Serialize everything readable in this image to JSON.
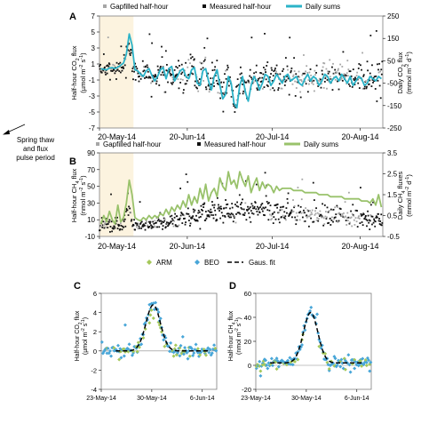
{
  "side_note": [
    "Spring thaw",
    "and flux",
    "pulse period"
  ],
  "colors": {
    "gapfilled": "#a6a6a6",
    "measured": "#111111",
    "co2_daily": "#2bb3c8",
    "ch4_daily": "#99c26b",
    "arm": "#a5c85a",
    "beo": "#48a6d8",
    "fit": "#000000",
    "highlight": "#fcf3df"
  },
  "chart_data": [
    {
      "panel": "A",
      "type": "scatter",
      "legend": [
        "Gapfilled half-hour",
        "Measured half-hour",
        "Daily sums"
      ],
      "ylabel": [
        "Half-hour CO",
        "2",
        " flux"
      ],
      "yunit": [
        "(µmol m",
        "-2",
        " s",
        "-1",
        ")"
      ],
      "y2label": [
        "Daily CO",
        "2",
        " flux"
      ],
      "y2unit": [
        "(mmol m",
        "-2",
        " d",
        "-1",
        ")"
      ],
      "ylim": [
        -7,
        7
      ],
      "yticks": [
        -7,
        -5,
        -3,
        -1,
        1,
        3,
        5,
        7
      ],
      "y2lim": [
        -250,
        250
      ],
      "y2ticks": [
        -250,
        -150,
        -50,
        50,
        150,
        250
      ],
      "xticks": [
        "20-May-14",
        "20-Jun-14",
        "20-Jul-14",
        "20-Aug-14"
      ],
      "xlim_days": [
        140,
        240
      ],
      "xtick_days": [
        140,
        171,
        201,
        232
      ],
      "highlight_days": [
        140,
        152
      ],
      "daily_sums": {
        "day": [
          140,
          141,
          142,
          143,
          144,
          145,
          146,
          147,
          148,
          149,
          150,
          151,
          152,
          153,
          154,
          155,
          156,
          157,
          158,
          159,
          160,
          161,
          162,
          163,
          164,
          165,
          166,
          167,
          168,
          169,
          170,
          171,
          172,
          173,
          174,
          175,
          176,
          177,
          178,
          179,
          180,
          181,
          182,
          183,
          184,
          185,
          186,
          187,
          188,
          189,
          190,
          191,
          192,
          193,
          194,
          195,
          196,
          197,
          198,
          199,
          200,
          201,
          202,
          203,
          204,
          205,
          206,
          207,
          208,
          209,
          210,
          211,
          212,
          213,
          214,
          215,
          216,
          217,
          218,
          219,
          220,
          221,
          222,
          223,
          224,
          225,
          226,
          227,
          228,
          229,
          230,
          231,
          232,
          233,
          234,
          235,
          236,
          237,
          238,
          239
        ],
        "value": [
          15,
          12,
          10,
          18,
          20,
          15,
          22,
          30,
          40,
          80,
          170,
          120,
          10,
          5,
          -10,
          -20,
          5,
          15,
          -15,
          -40,
          -20,
          10,
          20,
          -30,
          15,
          25,
          -40,
          -20,
          5,
          15,
          -20,
          -30,
          10,
          20,
          -50,
          -60,
          5,
          15,
          -40,
          -80,
          -20,
          10,
          -60,
          -120,
          -100,
          -20,
          -50,
          -140,
          -160,
          -60,
          -20,
          -90,
          -130,
          -60,
          -20,
          -40,
          -80,
          -50,
          -10,
          -20,
          -60,
          -40,
          -10,
          -30,
          -50,
          -20,
          -10,
          -40,
          -30,
          -20,
          -50,
          -60,
          -30,
          -10,
          -40,
          -20,
          -30,
          -60,
          -40,
          -10,
          -20,
          -50,
          -30,
          -20,
          -40,
          -10,
          -30,
          -50,
          -20,
          -60,
          -40,
          -20,
          -30,
          -60,
          -50,
          -20,
          -30,
          -40,
          -20,
          -30
        ]
      }
    },
    {
      "panel": "B",
      "type": "scatter",
      "legend": [
        "Gapfilled half-hour",
        "Measured half-hour",
        "Daily sums"
      ],
      "ylabel": [
        "Half-hour CH",
        "4",
        " flux"
      ],
      "yunit": [
        "(nmol m",
        "-2",
        " s",
        "-1",
        ")"
      ],
      "y2label": [
        "Daily CH",
        "4",
        " fluxes"
      ],
      "y2unit": [
        "(mmol m",
        "-2",
        " d",
        "-1",
        ")"
      ],
      "ylim": [
        -10,
        90
      ],
      "yticks": [
        -10,
        10,
        30,
        50,
        70,
        90
      ],
      "y2lim": [
        -0.5,
        3.5
      ],
      "y2ticks": [
        -0.5,
        0.5,
        1.5,
        2.5,
        3.5
      ],
      "xticks": [
        "20-May-14",
        "20-Jun-14",
        "20-Jul-14",
        "20-Aug-14"
      ],
      "xlim_days": [
        140,
        240
      ],
      "xtick_days": [
        140,
        171,
        201,
        232
      ],
      "highlight_days": [
        140,
        152
      ],
      "daily_sums": {
        "day": [
          140,
          141,
          142,
          143,
          144,
          145,
          146,
          147,
          148,
          149,
          150,
          151,
          152,
          153,
          154,
          155,
          156,
          157,
          158,
          159,
          160,
          161,
          162,
          163,
          164,
          165,
          166,
          167,
          168,
          169,
          170,
          171,
          172,
          173,
          174,
          175,
          176,
          177,
          178,
          179,
          180,
          181,
          182,
          183,
          184,
          185,
          186,
          187,
          188,
          189,
          190,
          191,
          192,
          193,
          194,
          195,
          196,
          197,
          198,
          199,
          200,
          201,
          202,
          203,
          204,
          205,
          206,
          207,
          208,
          209,
          210,
          211,
          212,
          213,
          214,
          215,
          216,
          217,
          218,
          219,
          220,
          221,
          222,
          223,
          224,
          225,
          226,
          227,
          228,
          229,
          230,
          231,
          232,
          233,
          234,
          235,
          236,
          237,
          238,
          239
        ],
        "value": [
          0.1,
          0.5,
          0.2,
          0.7,
          0.3,
          0.1,
          1.0,
          0.2,
          0.4,
          1.1,
          2.2,
          1.5,
          0.4,
          0.3,
          0.25,
          0.4,
          0.3,
          0.5,
          0.35,
          0.5,
          0.4,
          0.6,
          0.5,
          0.8,
          0.55,
          0.9,
          0.7,
          1.0,
          0.8,
          1.2,
          0.9,
          1.5,
          1.0,
          1.4,
          1.1,
          1.8,
          1.3,
          2.0,
          1.2,
          1.6,
          1.8,
          1.4,
          2.3,
          1.9,
          1.7,
          2.6,
          2.0,
          2.2,
          1.8,
          2.6,
          2.2,
          1.9,
          2.4,
          1.6,
          2.0,
          2.3,
          1.7,
          2.1,
          1.8,
          2.0,
          1.9,
          1.6,
          1.9,
          1.7,
          1.8,
          1.8,
          1.8,
          1.8,
          1.7,
          1.7,
          1.7,
          1.7,
          1.6,
          1.6,
          1.6,
          1.6,
          1.6,
          1.5,
          1.5,
          1.5,
          1.5,
          1.4,
          1.4,
          1.4,
          1.4,
          1.4,
          1.3,
          1.3,
          1.3,
          1.3,
          1.3,
          1.3,
          1.2,
          1.2,
          1.2,
          1.1,
          1.3,
          1.0,
          1.5,
          0.9
        ]
      }
    },
    {
      "panel": "C",
      "type": "scatter",
      "legend": [
        "ARM",
        "BEO",
        "Gaus. fit"
      ],
      "ylabel": [
        "Half-hour CO",
        "2",
        " flux"
      ],
      "yunit": [
        "(µmol m",
        "-2",
        " s",
        "-1",
        ")"
      ],
      "ylim": [
        -4,
        6
      ],
      "yticks": [
        -4,
        -2,
        0,
        2,
        4,
        6
      ],
      "xticks": [
        "23-May-14",
        "30-May-14",
        "6-Jun-14"
      ],
      "xlim_days": [
        143,
        159
      ],
      "xtick_days": [
        143,
        150,
        157
      ],
      "gauss_fit": {
        "amplitude": 4.8,
        "center_day": 150.2,
        "sigma_days": 1.0,
        "baseline": 0
      }
    },
    {
      "panel": "D",
      "type": "scatter",
      "legend": [
        "ARM",
        "BEO",
        "Gaus. fit"
      ],
      "ylabel": [
        "Half-hour CH",
        "4",
        " flux"
      ],
      "yunit": [
        "(nmol m",
        "-2",
        " s",
        "-1",
        ")"
      ],
      "ylim": [
        -20,
        60
      ],
      "yticks": [
        -20,
        0,
        20,
        40,
        60
      ],
      "xticks": [
        "23-May-14",
        "30-May-14",
        "6-Jun-14"
      ],
      "xlim_days": [
        143,
        159
      ],
      "xtick_days": [
        143,
        150,
        157
      ],
      "gauss_fit": {
        "amplitude": 42,
        "center_day": 150.6,
        "sigma_days": 1.0,
        "baseline": 2
      }
    }
  ]
}
